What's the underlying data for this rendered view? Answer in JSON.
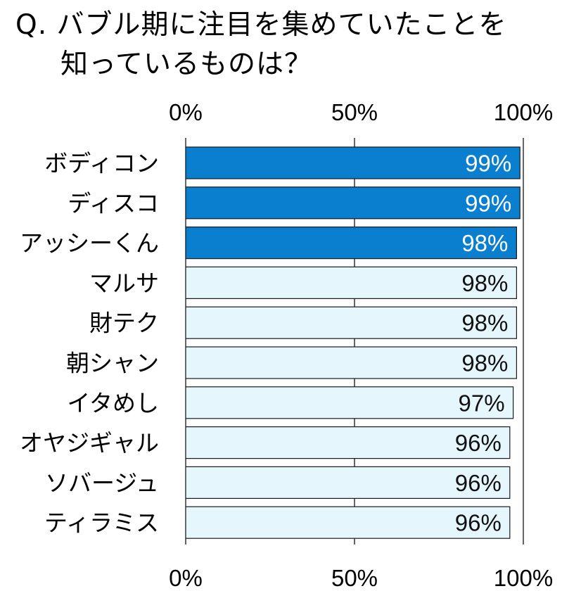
{
  "title": {
    "line1": "Q. バブル期に注目を集めていたことを",
    "line2": "知っているものは？"
  },
  "colors": {
    "highlight_fill": "#0a7fd0",
    "normal_fill": "#e6f6fd",
    "bar_stroke": "#1a1a1a",
    "highlight_text": "#ffffff",
    "normal_text": "#111111"
  },
  "chart_data": {
    "type": "bar",
    "orientation": "horizontal",
    "categories": [
      "ボディコン",
      "ディスコ",
      "アッシーくん",
      "マルサ",
      "財テク",
      "朝シャン",
      "イタめし",
      "オヤジギャル",
      "ソバージュ",
      "ティラミス"
    ],
    "values": [
      99,
      99,
      98,
      98,
      98,
      98,
      97,
      96,
      96,
      96
    ],
    "value_labels": [
      "99%",
      "99%",
      "98%",
      "98%",
      "98%",
      "98%",
      "97%",
      "96%",
      "96%",
      "96%"
    ],
    "highlighted": [
      true,
      true,
      true,
      false,
      false,
      false,
      false,
      false,
      false,
      false
    ],
    "xlim": [
      0,
      100
    ],
    "x_ticks": [
      0,
      50,
      100
    ],
    "x_tick_labels": [
      "0%",
      "50%",
      "100%"
    ],
    "grid": true,
    "axis_labels_position": "top and bottom"
  }
}
